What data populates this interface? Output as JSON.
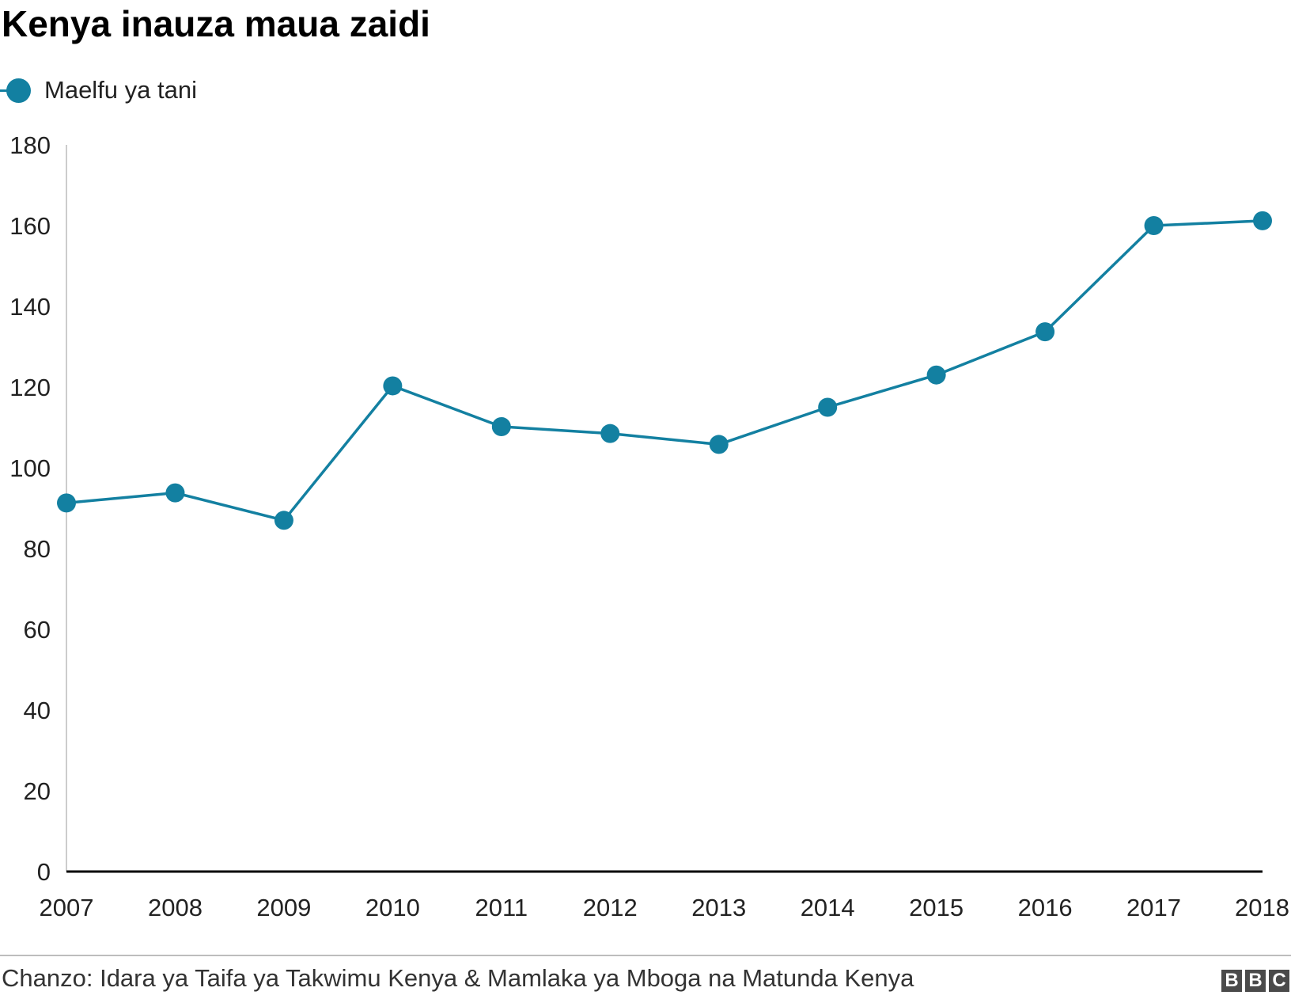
{
  "chart_data": {
    "type": "line",
    "title": "Kenya inauza maua zaidi",
    "x": [
      "2007",
      "2008",
      "2009",
      "2010",
      "2011",
      "2012",
      "2013",
      "2014",
      "2015",
      "2016",
      "2017",
      "2018"
    ],
    "series": [
      {
        "name": "Maelfu ya tani",
        "values": [
          91.3,
          93.8,
          87.0,
          120.3,
          110.2,
          108.5,
          105.8,
          115.0,
          123.0,
          133.7,
          160.0,
          161.2
        ],
        "color": "#1380a1"
      }
    ],
    "y_ticks": [
      0,
      20,
      40,
      60,
      80,
      100,
      120,
      140,
      160,
      180
    ],
    "ylim": [
      0,
      180
    ],
    "grid": false,
    "legend_position": "top-left",
    "xlabel": "",
    "ylabel": ""
  },
  "source": "Chanzo: Idara ya Taifa ya Takwimu Kenya & Mamlaka ya Mboga na Matunda Kenya",
  "logo": {
    "letters": [
      "B",
      "B",
      "C"
    ],
    "color": "#4a4a4a"
  }
}
